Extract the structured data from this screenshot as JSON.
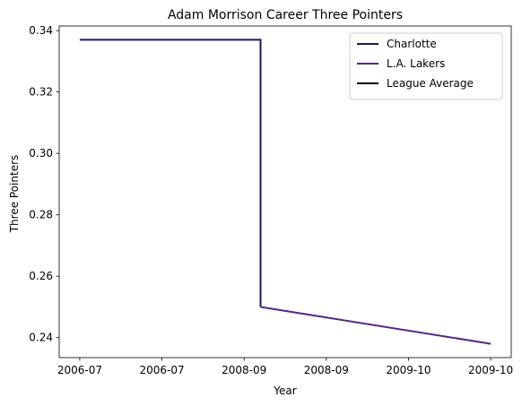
{
  "chart_data": {
    "type": "line",
    "title": "Adam Morrison Career Three Pointers",
    "xlabel": "Year",
    "ylabel": "Three Pointers",
    "x_tick_labels": [
      "2006-07",
      "2006-07",
      "2008-09",
      "2008-09",
      "2009-10",
      "2009-10"
    ],
    "y_ticks": [
      0.24,
      0.26,
      0.28,
      0.3,
      0.32,
      0.34
    ],
    "y_tick_labels": [
      "0.24",
      "0.26",
      "0.28",
      "0.30",
      "0.32",
      "0.34"
    ],
    "xlim": [
      -0.05,
      1.05
    ],
    "ylim": [
      0.2335,
      0.3415
    ],
    "grid": false,
    "legend_position": "top-right",
    "series": [
      {
        "name": "Charlotte",
        "color": "#1f1650",
        "points": [
          [
            0.0,
            0.337
          ],
          [
            0.44,
            0.337
          ],
          [
            0.44,
            0.25
          ]
        ]
      },
      {
        "name": "L.A. Lakers",
        "color": "#552583",
        "points": [
          [
            0.44,
            0.25
          ],
          [
            1.0,
            0.238
          ]
        ]
      },
      {
        "name": "League Average",
        "color": "#000000",
        "points": []
      }
    ]
  }
}
